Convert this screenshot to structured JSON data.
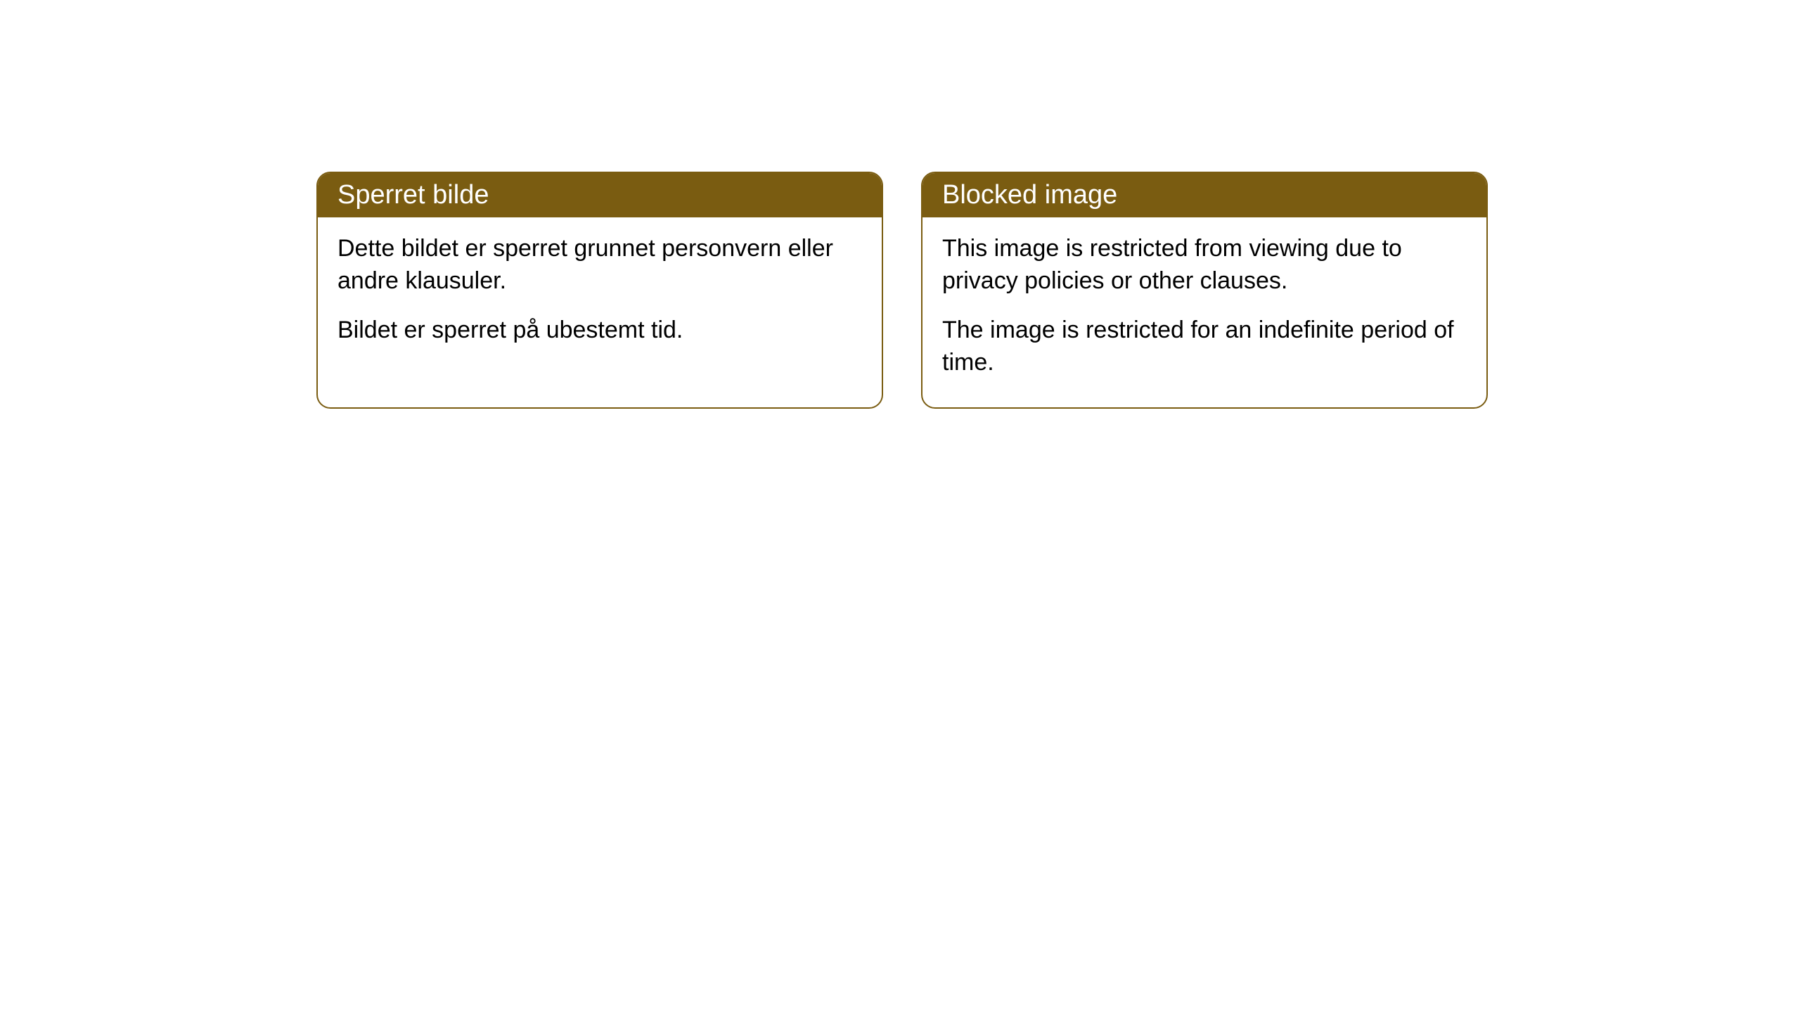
{
  "cards": [
    {
      "title": "Sperret bilde",
      "paragraph1": "Dette bildet er sperret grunnet personvern eller andre klausuler.",
      "paragraph2": "Bildet er sperret på ubestemt tid."
    },
    {
      "title": "Blocked image",
      "paragraph1": "This image is restricted from viewing due to privacy policies or other clauses.",
      "paragraph2": "The image is restricted for an indefinite period of time."
    }
  ],
  "styling": {
    "background_color": "#ffffff",
    "card_border_color": "#7a5c11",
    "card_header_bg": "#7a5c11",
    "card_header_text": "#ffffff",
    "card_body_bg": "#ffffff",
    "card_body_text": "#000000",
    "border_radius": 20,
    "header_fontsize": 38,
    "body_fontsize": 34
  }
}
